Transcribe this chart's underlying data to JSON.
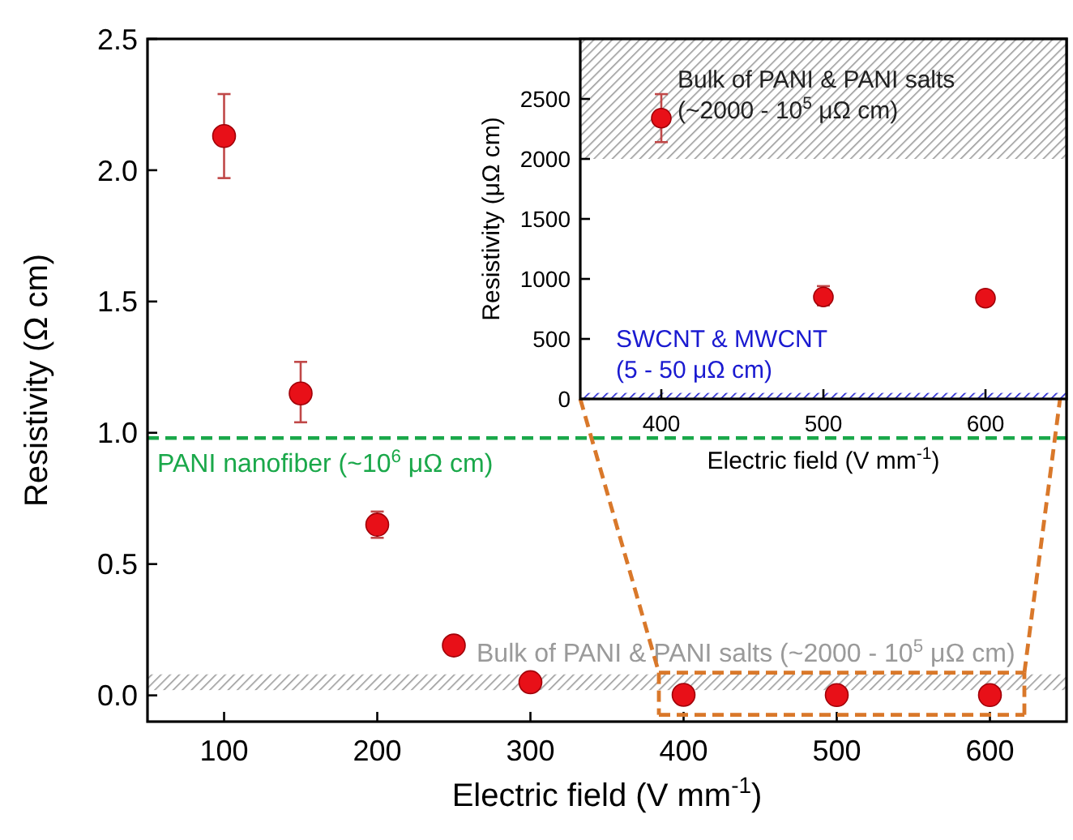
{
  "chart_data": [
    {
      "type": "scatter",
      "xlabel": "Electric field (V mm$^{-1}$)",
      "ylabel": "Resistivity (Ω cm)",
      "x": [
        100,
        150,
        200,
        250,
        300,
        400,
        500,
        600
      ],
      "series": [
        {
          "color": "#e81018",
          "values": [
            2.13,
            1.15,
            0.65,
            0.19,
            0.05,
            0.002,
            0.001,
            0.001
          ],
          "errors": [
            [
              1.97,
              2.29
            ],
            [
              1.04,
              1.27
            ],
            [
              0.6,
              0.7
            ],
            null,
            null,
            null,
            null,
            null
          ]
        }
      ],
      "xlim": [
        50,
        650
      ],
      "ylim": [
        -0.1,
        2.5
      ],
      "xticks": [
        100,
        200,
        300,
        400,
        500,
        600
      ],
      "yticks": [
        {
          "value": 0,
          "label": "0.0"
        },
        {
          "value": 0.5,
          "label": "0.5"
        },
        {
          "value": 1,
          "label": "1.0"
        },
        {
          "value": 1.5,
          "label": "1.5"
        },
        {
          "value": 2,
          "label": "2.0"
        },
        {
          "value": 2.5,
          "label": "2.5"
        }
      ],
      "ref_lines": [
        {
          "axis": "y",
          "value": 0.98,
          "label": "PANI nanofiber (~10$^{6}$ μΩ cm)",
          "color": "#1aa84a",
          "line_style": "dashed"
        }
      ],
      "bands": [
        {
          "axis": "y",
          "from": 0.02,
          "to": 0.08,
          "label": "Bulk of PANI & PANI salts (~2000 - 10$^{5}$ μΩ cm)",
          "color": "#9a9a9a"
        }
      ],
      "marker": "circle",
      "grid": false
    },
    {
      "type": "scatter",
      "xlabel": "Electric field (V mm$^{-1}$)",
      "ylabel": "Resistivity (μΩ cm)",
      "x": [
        400,
        500,
        600
      ],
      "series": [
        {
          "color": "#e81018",
          "values": [
            2340,
            850,
            840
          ],
          "errors": [
            [
              2140,
              2540
            ],
            [
              780,
              940
            ],
            null
          ]
        }
      ],
      "xlim": [
        350,
        650
      ],
      "ylim": [
        0,
        3000
      ],
      "xticks": [
        400,
        500,
        600
      ],
      "yticks": [
        0,
        500,
        1000,
        1500,
        2000,
        2500
      ],
      "bands": [
        {
          "axis": "y",
          "from": 2000,
          "to": 3000,
          "label": "Bulk of PANI & PANI salts\n(~2000 - 10$^{5}$ μΩ cm)",
          "color": "#9a9a9a"
        },
        {
          "axis": "y",
          "from": 5,
          "to": 50,
          "label": "SWCNT & MWCNT\n(5 - 50 μΩ cm)",
          "color": "#1a1ad0"
        }
      ],
      "marker": "circle",
      "grid": false
    }
  ]
}
